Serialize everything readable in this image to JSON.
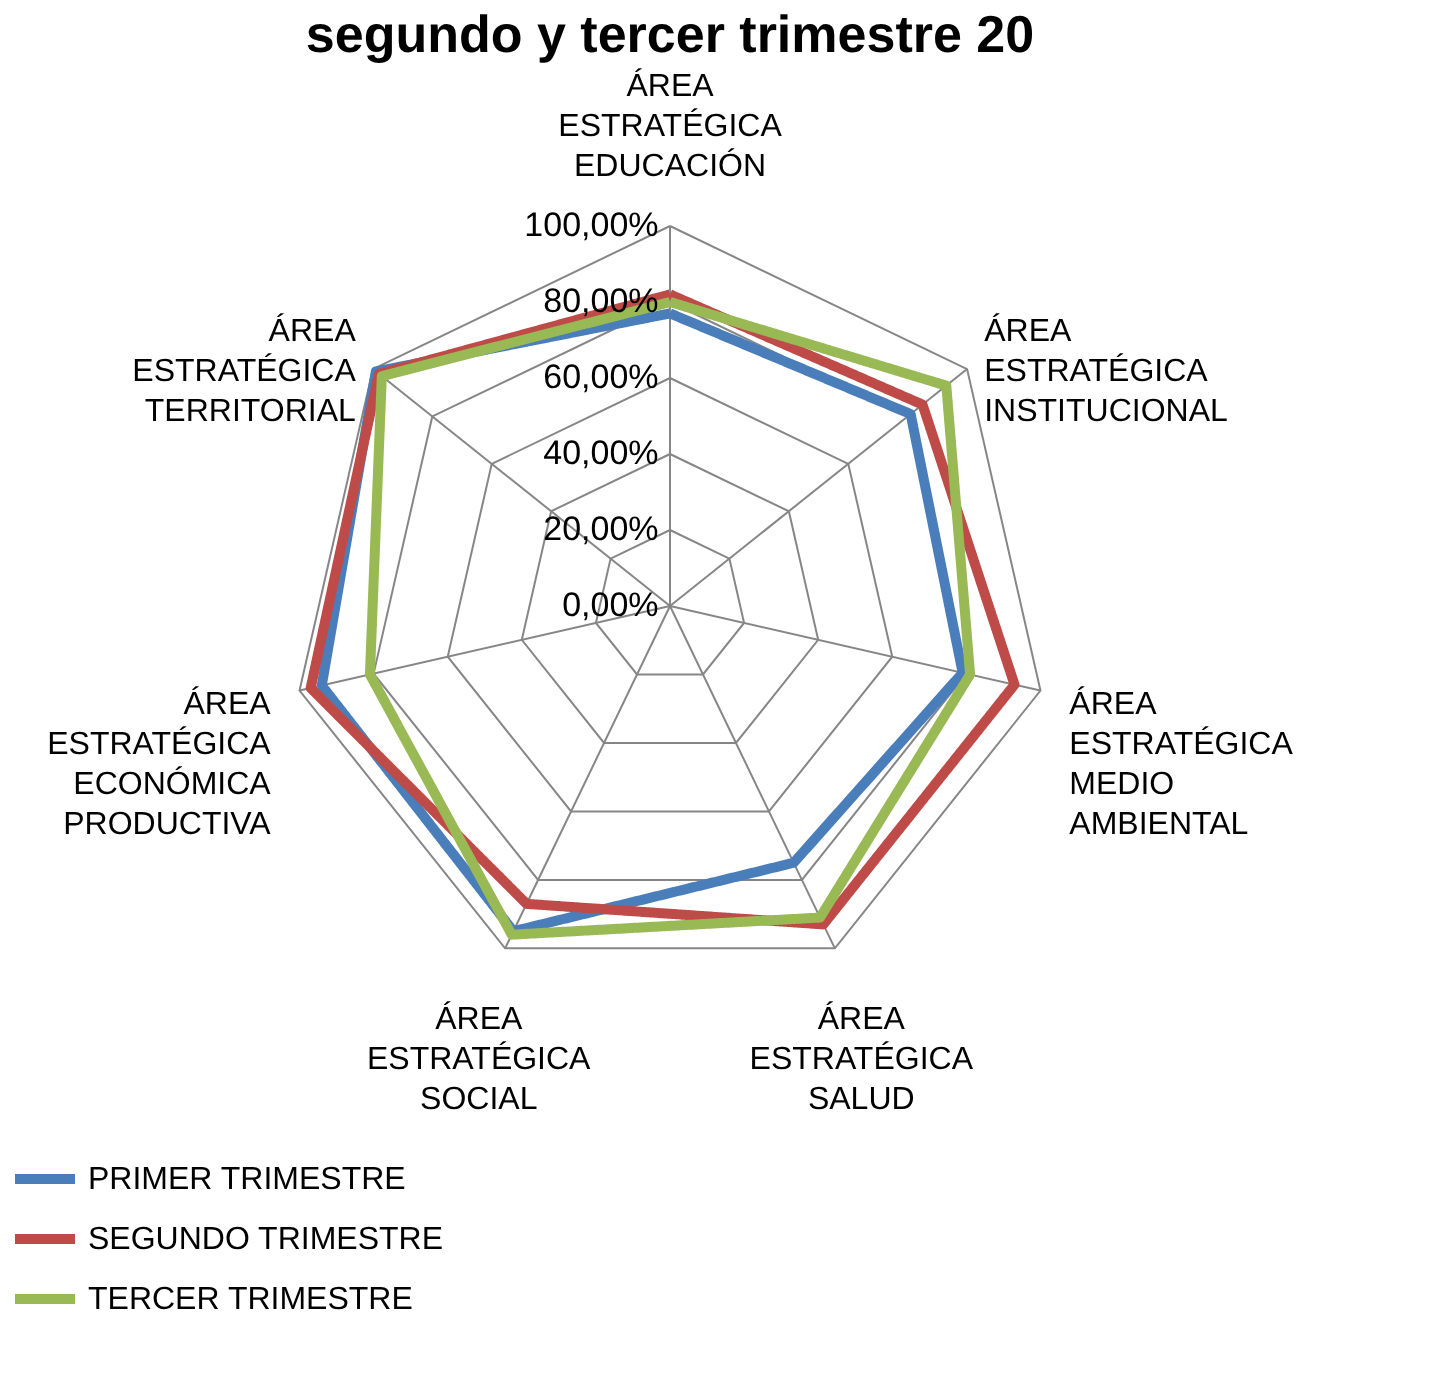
{
  "chart_data": {
    "type": "radar",
    "title": "segundo y tercer trimestre 20",
    "categories": [
      "ÁREA ESTRATÉGICA EDUCACIÓN",
      "ÁREA ESTRATÉGICA INSTITUCIONAL",
      "ÁREA ESTRATÉGICA MEDIO AMBIENTAL",
      "ÁREA ESTRATÉGICA SALUD",
      "ÁREA ESTRATÉGICA SOCIAL",
      "ÁREA ESTRATÉGICA ECONÓMICA PRODUCTIVA",
      "ÁREA ESTRATÉGICA TERRITORIAL"
    ],
    "series": [
      {
        "name": "PRIMER TRIMESTRE",
        "color": "#4a7ebb",
        "values": [
          77,
          81,
          79,
          75,
          95,
          94,
          99
        ]
      },
      {
        "name": "SEGUNDO TRIMESTRE",
        "color": "#be4b48",
        "values": [
          82,
          85,
          93,
          93,
          87,
          97,
          98
        ]
      },
      {
        "name": "TERCER TRIMESTRE",
        "color": "#98b954",
        "values": [
          80,
          93,
          81,
          91,
          96,
          81,
          97
        ]
      }
    ],
    "ylim": [
      0,
      100
    ],
    "yticks": [
      {
        "value": 0,
        "label": "0,00%"
      },
      {
        "value": 20,
        "label": "20,00%"
      },
      {
        "value": 40,
        "label": "40,00%"
      },
      {
        "value": 60,
        "label": "60,00%"
      },
      {
        "value": 80,
        "label": "80,00%"
      },
      {
        "value": 100,
        "label": "100,00%"
      }
    ],
    "grid": true,
    "legend": "bottom",
    "marker": "none",
    "line_style": "solid"
  }
}
